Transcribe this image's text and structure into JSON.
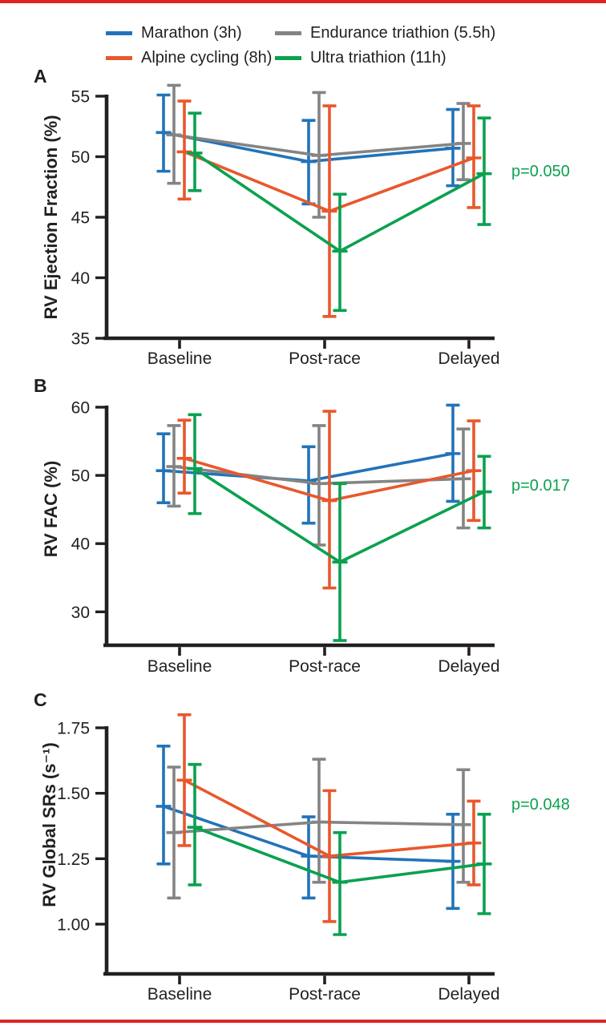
{
  "colors": {
    "background": "#ffffff",
    "text": "#231f20",
    "axis": "#231f20",
    "rule_red": "#de2521",
    "p_value_green": "#0aa14f",
    "marathon_blue": "#2273b9",
    "endurance_gray": "#848484",
    "alpine_orange": "#e8582c",
    "ultra_green": "#0aa14f"
  },
  "legend": {
    "items": [
      {
        "label": "Marathon (3h)",
        "color": "#2273b9"
      },
      {
        "label": "Endurance triathion (5.5h)",
        "color": "#848484"
      },
      {
        "label": "Alpine cycling (8h)",
        "color": "#e8582c"
      },
      {
        "label": "Ultra triathion (11h)",
        "color": "#0aa14f"
      }
    ]
  },
  "chart_data": [
    {
      "panel_label": "A",
      "type": "line",
      "title": "",
      "xlabel": "",
      "ylabel": "RV Ejection Fraction (%)",
      "categories": [
        "Baseline",
        "Post-race",
        "Delayed"
      ],
      "ytick_labels": [
        "35",
        "40",
        "45",
        "50",
        "55"
      ],
      "ylim": [
        35,
        55
      ],
      "grid": false,
      "p_label": "p=0.050",
      "series": [
        {
          "name": "Marathon (3h)",
          "color": "#2273b9",
          "values": [
            52.0,
            49.6,
            50.7
          ],
          "err_low": [
            48.8,
            46.1,
            47.6
          ],
          "err_high": [
            55.1,
            53.0,
            53.9
          ]
        },
        {
          "name": "Endurance triathion (5.5h)",
          "color": "#848484",
          "values": [
            51.8,
            50.1,
            51.1
          ],
          "err_low": [
            47.8,
            45.0,
            48.1
          ],
          "err_high": [
            55.9,
            55.3,
            54.4
          ]
        },
        {
          "name": "Alpine cycling (8h)",
          "color": "#e8582c",
          "values": [
            50.4,
            45.5,
            49.9
          ],
          "err_low": [
            46.5,
            36.8,
            45.8
          ],
          "err_high": [
            54.6,
            54.2,
            54.2
          ]
        },
        {
          "name": "Ultra triathion (11h)",
          "color": "#0aa14f",
          "values": [
            50.3,
            42.2,
            48.6
          ],
          "err_low": [
            47.2,
            37.3,
            44.4
          ],
          "err_high": [
            53.6,
            46.9,
            53.2
          ]
        }
      ]
    },
    {
      "panel_label": "B",
      "type": "line",
      "title": "",
      "xlabel": "",
      "ylabel": "RV FAC (%)",
      "categories": [
        "Baseline",
        "Post-race",
        "Delayed"
      ],
      "ytick_labels": [
        "30",
        "40",
        "50",
        "60"
      ],
      "ylim": [
        25.1,
        60
      ],
      "grid": false,
      "p_label": "p=0.017",
      "series": [
        {
          "name": "Marathon (3h)",
          "color": "#2273b9",
          "values": [
            50.7,
            49.2,
            53.2
          ],
          "err_low": [
            46.0,
            43.0,
            46.2
          ],
          "err_high": [
            56.1,
            54.2,
            60.3
          ]
        },
        {
          "name": "Endurance triathion (5.5h)",
          "color": "#848484",
          "values": [
            51.3,
            48.8,
            49.5
          ],
          "err_low": [
            45.5,
            39.8,
            42.3
          ],
          "err_high": [
            57.3,
            57.3,
            56.8
          ]
        },
        {
          "name": "Alpine cycling (8h)",
          "color": "#e8582c",
          "values": [
            52.5,
            46.3,
            50.7
          ],
          "err_low": [
            47.4,
            33.5,
            43.4
          ],
          "err_high": [
            58.1,
            59.4,
            58.0
          ]
        },
        {
          "name": "Ultra triathion (11h)",
          "color": "#0aa14f",
          "values": [
            51.0,
            37.3,
            47.6
          ],
          "err_low": [
            44.4,
            25.8,
            42.3
          ],
          "err_high": [
            58.9,
            48.8,
            52.8
          ]
        }
      ]
    },
    {
      "panel_label": "C",
      "type": "line",
      "title": "",
      "xlabel": "",
      "ylabel": "RV Global SRs (s⁻¹)",
      "categories": [
        "Baseline",
        "Post-race",
        "Delayed"
      ],
      "ytick_labels": [
        "1.00",
        "1.25",
        "1.50",
        "1.75"
      ],
      "ylim": [
        0.81,
        1.75
      ],
      "grid": false,
      "p_label": "p=0.048",
      "series": [
        {
          "name": "Marathon (3h)",
          "color": "#2273b9",
          "values": [
            1.45,
            1.26,
            1.24
          ],
          "err_low": [
            1.23,
            1.1,
            1.06
          ],
          "err_high": [
            1.68,
            1.41,
            1.42
          ]
        },
        {
          "name": "Endurance triathion (5.5h)",
          "color": "#848484",
          "values": [
            1.35,
            1.39,
            1.38
          ],
          "err_low": [
            1.1,
            1.16,
            1.16
          ],
          "err_high": [
            1.6,
            1.63,
            1.59
          ]
        },
        {
          "name": "Alpine cycling (8h)",
          "color": "#e8582c",
          "values": [
            1.55,
            1.26,
            1.31
          ],
          "err_low": [
            1.3,
            1.01,
            1.15
          ],
          "err_high": [
            1.8,
            1.51,
            1.47
          ]
        },
        {
          "name": "Ultra triathion (11h)",
          "color": "#0aa14f",
          "values": [
            1.37,
            1.16,
            1.23
          ],
          "err_low": [
            1.15,
            0.96,
            1.04
          ],
          "err_high": [
            1.61,
            1.35,
            1.42
          ]
        }
      ]
    }
  ]
}
